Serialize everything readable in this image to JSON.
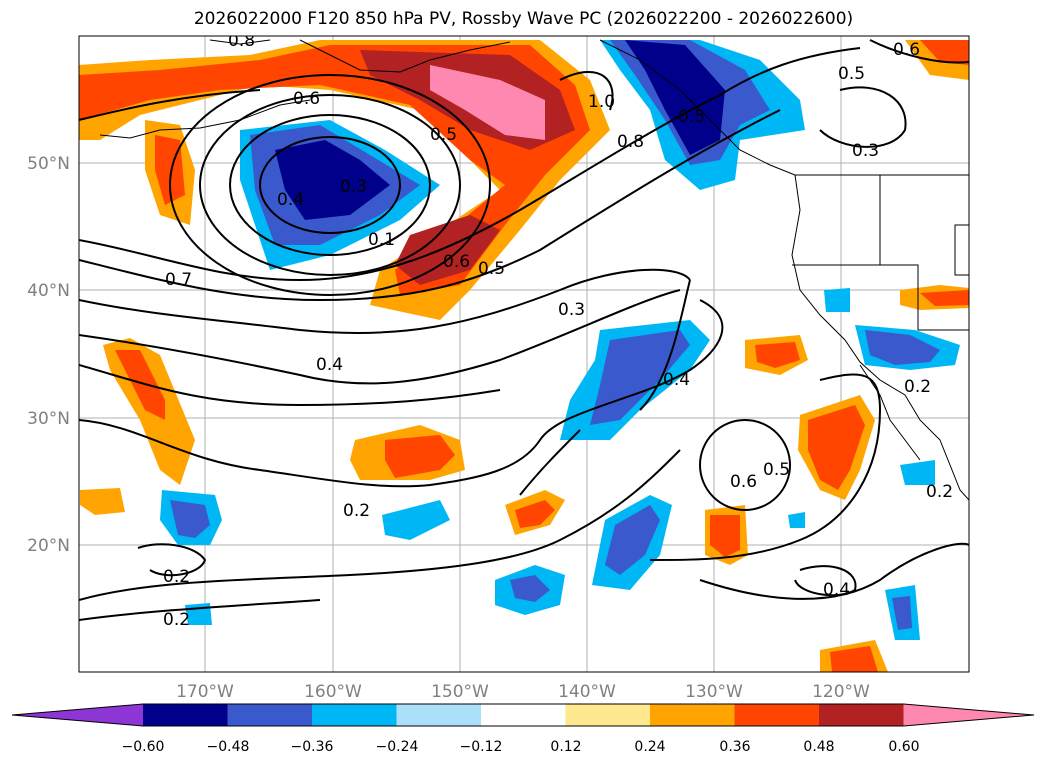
{
  "title": "2026022000 F120 850 hPa PV, Rossby Wave PC (2026022200 - 2026022600)",
  "map": {
    "lat_ticks": [
      "50°N",
      "40°N",
      "30°N",
      "20°N"
    ],
    "lon_ticks": [
      "170°W",
      "160°W",
      "150°W",
      "140°W",
      "130°W",
      "120°W"
    ],
    "tick_color": "#808080",
    "grid_color": "#b0b0b0"
  },
  "contour_labels": [
    "0.8",
    "0.6",
    "0.5",
    "1.0",
    "0.8",
    "0.5",
    "0.6",
    "0.5",
    "0.3",
    "0.4",
    "0.3",
    "0.1",
    "0.6",
    "0.5",
    "0.7",
    "0.3",
    "0.4",
    "0.4",
    "0.6",
    "0.5",
    "0.2",
    "0.2",
    "0.2",
    "0.4",
    "0.2",
    "0.2"
  ],
  "colorbar": {
    "colors": [
      "#8e35d6",
      "#00008b",
      "#3a59cc",
      "#00b7f5",
      "#ace0fa",
      "#ffffff",
      "#ffe98f",
      "#ffa400",
      "#ff4500",
      "#b22222",
      "#ff88b0"
    ],
    "tick_labels": [
      "−0.60",
      "−0.48",
      "−0.36",
      "−0.24",
      "−0.12",
      "0.12",
      "0.24",
      "0.36",
      "0.48",
      "0.60"
    ]
  }
}
